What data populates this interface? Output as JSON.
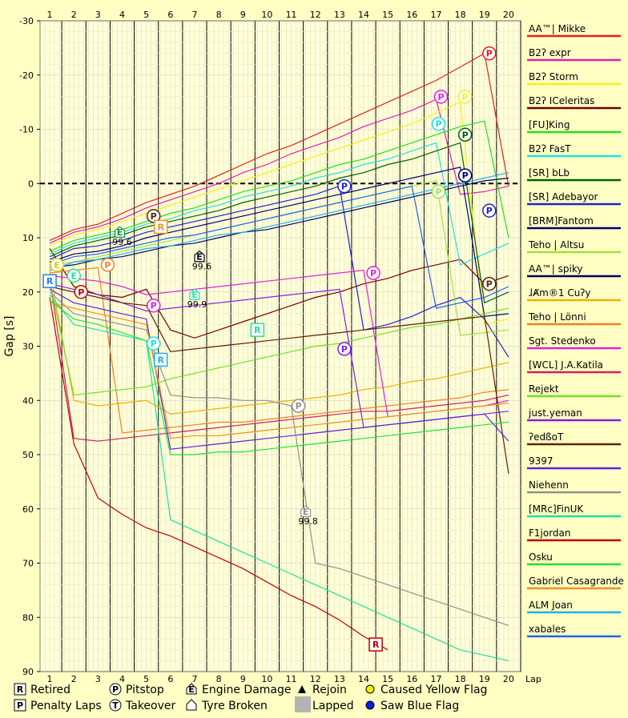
{
  "chart_data": {
    "type": "line",
    "ylabel": "Gap [s]",
    "xlabel": "Lap",
    "x": [
      1,
      2,
      3,
      4,
      5,
      6,
      7,
      8,
      9,
      10,
      11,
      12,
      13,
      14,
      15,
      16,
      17,
      18,
      19,
      20
    ],
    "xlim": [
      0.6,
      20.5
    ],
    "ylim": [
      -30,
      90
    ],
    "y_inverted": true,
    "yticks": [
      -30,
      -20,
      -10,
      0,
      10,
      20,
      30,
      40,
      50,
      60,
      70,
      80,
      90
    ],
    "grid": true,
    "legend_position": "right",
    "series": [
      {
        "name": "AA™| Mikke",
        "color": "#e02020",
        "values": [
          10.5,
          8.5,
          7.5,
          5.5,
          3.5,
          2.0,
          0.5,
          -1.5,
          -3.5,
          -5.5,
          -7.0,
          -9.0,
          -11.0,
          -13.0,
          -15.0,
          -17.0,
          -19.0,
          -21.5,
          -24.0,
          0.5
        ]
      },
      {
        "name": "B2ʔ expr",
        "color": "#e020b0",
        "values": [
          11.0,
          9.0,
          8.0,
          6.5,
          4.5,
          3.0,
          1.5,
          0.0,
          -2.0,
          -3.5,
          -5.5,
          -7.0,
          -8.5,
          -10.5,
          -12.0,
          -13.5,
          -15.5,
          2.0,
          1.5,
          0.5
        ]
      },
      {
        "name": "B2ʔ Storm",
        "color": "#f0f020",
        "values": [
          11.5,
          9.5,
          8.5,
          7.0,
          5.5,
          4.0,
          2.5,
          1.0,
          -0.5,
          -2.0,
          -3.5,
          -5.0,
          -6.5,
          -8.0,
          -9.5,
          -11.0,
          -13.0,
          -15.0,
          26.0,
          25.0
        ]
      },
      {
        "name": "B2ʔ ICeleritas",
        "color": "#700000",
        "values": [
          12.0,
          19.0,
          20.5,
          21.0,
          19.5,
          27.0,
          28.5,
          27.0,
          25.5,
          24.0,
          22.5,
          21.0,
          20.0,
          18.5,
          17.5,
          16.0,
          15.0,
          14.0,
          18.5,
          17.0
        ]
      },
      {
        "name": "[FU]King",
        "color": "#20e020",
        "values": [
          12.5,
          10.5,
          9.5,
          8.5,
          7.0,
          5.5,
          4.5,
          3.0,
          1.5,
          0.5,
          -0.5,
          -2.0,
          -3.5,
          -4.5,
          -6.0,
          -7.5,
          -9.0,
          -10.5,
          -11.5,
          10.0
        ]
      },
      {
        "name": "B2ʔ FasT",
        "color": "#20e0e0",
        "values": [
          13.0,
          11.0,
          10.0,
          9.0,
          7.5,
          6.5,
          5.0,
          4.0,
          2.5,
          1.5,
          0.5,
          -1.0,
          -2.0,
          -3.5,
          -4.5,
          -6.0,
          -7.5,
          15.0,
          13.0,
          11.0
        ]
      },
      {
        "name": "[SR] bLb",
        "color": "#006000",
        "values": [
          13.5,
          11.5,
          10.5,
          9.5,
          8.0,
          7.0,
          6.0,
          5.0,
          3.5,
          2.5,
          1.5,
          0.5,
          -1.0,
          -2.0,
          -3.5,
          -4.5,
          -6.0,
          -7.5,
          22.0,
          20.0
        ]
      },
      {
        "name": "[SR] Adebayor",
        "color": "#2020d0",
        "values": [
          14.0,
          12.0,
          11.5,
          10.5,
          9.0,
          8.0,
          7.0,
          6.0,
          5.0,
          4.0,
          3.0,
          2.0,
          0.5,
          27.0,
          26.0,
          24.5,
          22.5,
          21.0,
          25.0,
          32.0
        ]
      },
      {
        "name": "[BRM]Fantom",
        "color": "#000070",
        "values": [
          14.5,
          13.0,
          12.5,
          11.5,
          10.0,
          9.0,
          8.0,
          7.0,
          6.0,
          5.0,
          4.0,
          3.0,
          2.0,
          1.0,
          0.0,
          -1.0,
          -2.0,
          -3.0,
          24.5,
          24.0
        ]
      },
      {
        "name": "Teho | Altsu",
        "color": "#a0e040",
        "values": [
          15.0,
          14.5,
          13.5,
          12.5,
          11.5,
          10.5,
          9.5,
          8.5,
          7.5,
          6.5,
          5.5,
          4.5,
          3.5,
          2.5,
          1.5,
          0.5,
          -0.5,
          28.0,
          27.5,
          27.0
        ]
      },
      {
        "name": "AA™| spiky",
        "color": "#000060",
        "values": [
          15.5,
          15.0,
          14.0,
          13.5,
          12.5,
          11.5,
          11.0,
          10.0,
          9.0,
          8.5,
          7.5,
          6.5,
          5.5,
          4.5,
          3.5,
          2.5,
          1.5,
          0.5,
          -0.5,
          -1.0
        ]
      },
      {
        "name": "ɺ﻿Ⱥm®1 Cuʔy",
        "color": "#f0b000",
        "values": [
          16.0,
          40.0,
          41.0,
          40.5,
          40.0,
          42.5,
          42.0,
          41.5,
          41.0,
          40.5,
          40.0,
          39.5,
          39.0,
          38.0,
          37.5,
          36.5,
          36.0,
          35.0,
          34.0,
          33.0
        ]
      },
      {
        "name": "Teho | Lönni",
        "color": "#f08020",
        "values": [
          16.5,
          16.0,
          15.5,
          46.0,
          45.5,
          45.0,
          44.5,
          44.0,
          44.0,
          43.5,
          43.0,
          42.5,
          42.0,
          41.5,
          41.0,
          40.5,
          40.0,
          39.5,
          38.5,
          38.0
        ]
      },
      {
        "name": "Sgt. Stedenko",
        "color": "#e020e0",
        "values": [
          17.0,
          17.5,
          18.0,
          19.0,
          20.5,
          20.0,
          19.5,
          19.0,
          18.5,
          18.0,
          17.5,
          17.0,
          16.5,
          16.0,
          43.0,
          42.5,
          42.0,
          41.5,
          41.0,
          40.0
        ]
      },
      {
        "name": "[WCL] J.A.Katila",
        "color": "#d02060",
        "values": [
          17.5,
          47.0,
          47.5,
          47.0,
          46.5,
          46.0,
          45.5,
          45.0,
          44.5,
          44.0,
          43.5,
          43.0,
          42.5,
          42.0,
          42.0,
          41.5,
          41.0,
          40.5,
          40.0,
          39.0
        ]
      },
      {
        "name": "Rejekt",
        "color": "#70e020",
        "values": [
          18.0,
          39.0,
          38.5,
          38.0,
          37.5,
          36.0,
          35.0,
          34.0,
          33.0,
          32.0,
          31.0,
          30.0,
          29.5,
          28.5,
          27.5,
          26.5,
          26.0,
          25.0,
          24.0,
          23.0
        ]
      },
      {
        "name": "just.yeman",
        "color": "#8020e0",
        "values": [
          18.5,
          19.5,
          20.5,
          22.0,
          23.5,
          23.0,
          22.5,
          22.0,
          21.5,
          21.0,
          20.5,
          20.0,
          19.5,
          45.0,
          44.5,
          44.0,
          43.5,
          43.0,
          42.5,
          42.0
        ]
      },
      {
        "name": "ʔedßoT",
        "color": "#602000",
        "values": [
          19.0,
          20.0,
          21.0,
          22.0,
          22.5,
          31.0,
          30.5,
          30.0,
          29.5,
          29.0,
          28.5,
          28.0,
          27.5,
          27.0,
          26.5,
          26.0,
          25.5,
          25.0,
          24.5,
          53.5
        ]
      },
      {
        "name": "9397",
        "color": "#6020e0",
        "values": [
          19.5,
          22.0,
          23.0,
          24.0,
          25.0,
          49.0,
          48.5,
          48.0,
          47.5,
          47.0,
          46.5,
          46.0,
          45.5,
          45.0,
          44.5,
          44.0,
          43.5,
          43.0,
          42.5,
          47.5
        ]
      },
      {
        "name": "Niehenn",
        "color": "#909090",
        "values": [
          20.0,
          24.0,
          25.0,
          26.0,
          27.0,
          39.0,
          39.5,
          39.5,
          40.0,
          40.0,
          41.0,
          70.0,
          71.0,
          72.5,
          74.0,
          75.5,
          77.0,
          78.5,
          80.0,
          81.5
        ]
      },
      {
        "name": "[MRc]FinUK",
        "color": "#20e0a0",
        "values": [
          20.5,
          26.0,
          27.0,
          28.0,
          29.0,
          62.0,
          64.0,
          66.0,
          68.0,
          70.0,
          72.0,
          74.0,
          76.0,
          78.0,
          80.0,
          82.0,
          84.0,
          86.0,
          87.0,
          88.0
        ]
      },
      {
        "name": "F1jordan",
        "color": "#c00000",
        "values": [
          21.0,
          48.0,
          58.0,
          61.0,
          63.5,
          65.0,
          67.0,
          69.0,
          71.0,
          73.5,
          76.0,
          78.0,
          80.5,
          83.5,
          86.0,
          null,
          null,
          null,
          null,
          null
        ]
      },
      {
        "name": "Osku",
        "color": "#20e040",
        "values": [
          21.5,
          25.0,
          26.0,
          27.5,
          29.0,
          50.0,
          50.0,
          49.5,
          49.5,
          49.0,
          48.5,
          48.0,
          47.5,
          47.0,
          46.5,
          46.0,
          45.5,
          45.0,
          44.5,
          44.0
        ]
      },
      {
        "name": "Gabriel Casagrande",
        "color": "#f09020",
        "values": [
          22.0,
          23.0,
          24.0,
          25.0,
          26.0,
          47.0,
          46.5,
          46.5,
          46.0,
          45.5,
          45.0,
          44.5,
          44.0,
          43.5,
          43.0,
          42.5,
          42.0,
          41.5,
          41.0,
          40.5
        ]
      },
      {
        "name": "ALM Joan",
        "color": "#20b0f0",
        "values": [
          16.0,
          14.5,
          14.0,
          13.0,
          12.0,
          11.5,
          10.5,
          9.5,
          9.0,
          8.0,
          7.0,
          6.0,
          5.0,
          4.0,
          3.0,
          2.0,
          1.0,
          0.0,
          -1.0,
          -2.0
        ]
      },
      {
        "name": "xabales",
        "color": "#2060f0",
        "values": [
          15.0,
          13.5,
          13.0,
          12.0,
          11.0,
          10.0,
          9.5,
          8.5,
          7.5,
          6.5,
          5.5,
          4.5,
          3.5,
          2.5,
          1.5,
          0.5,
          23.0,
          22.0,
          21.0,
          19.0
        ]
      }
    ],
    "markers": [
      {
        "type": "P",
        "x": 19.2,
        "y": -24.0,
        "color": "#e02020"
      },
      {
        "type": "P",
        "x": 17.2,
        "y": -16.0,
        "color": "#e020e0"
      },
      {
        "type": "P",
        "x": 18.2,
        "y": -16.0,
        "color": "#f0f020"
      },
      {
        "type": "P",
        "x": 17.1,
        "y": -11.0,
        "color": "#20e0e0"
      },
      {
        "type": "P",
        "x": 18.2,
        "y": -9.0,
        "color": "#006000"
      },
      {
        "type": "P",
        "x": 18.2,
        "y": -1.5,
        "color": "#000070"
      },
      {
        "type": "P",
        "x": 17.1,
        "y": 1.5,
        "color": "#a0e040"
      },
      {
        "type": "P",
        "x": 13.2,
        "y": 0.5,
        "color": "#2020d0"
      },
      {
        "type": "P",
        "x": 19.2,
        "y": 5.0,
        "color": "#2020d0"
      },
      {
        "type": "P",
        "x": 5.3,
        "y": 6.0,
        "color": "#602000"
      },
      {
        "type": "R",
        "x": 5.6,
        "y": 8.0,
        "color": "#f09020"
      },
      {
        "type": "P",
        "x": 14.4,
        "y": 16.5,
        "color": "#e020e0"
      },
      {
        "type": "P",
        "x": 19.2,
        "y": 18.5,
        "color": "#602000"
      },
      {
        "type": "P",
        "x": 3.4,
        "y": 15.0,
        "color": "#f08020"
      },
      {
        "type": "R",
        "x": 1.0,
        "y": 18.0,
        "color": "#2080f0"
      },
      {
        "type": "E",
        "x": 1.3,
        "y": 15.0,
        "color": "#d0d020"
      },
      {
        "type": "E",
        "x": 2.0,
        "y": 17.0,
        "color": "#20e0a0"
      },
      {
        "type": "P",
        "x": 2.3,
        "y": 20.0,
        "color": "#c00000"
      },
      {
        "type": "P",
        "x": 5.3,
        "y": 22.5,
        "color": "#e020e0"
      },
      {
        "type": "R",
        "x": 9.6,
        "y": 27.0,
        "color": "#20e0a0"
      },
      {
        "type": "P",
        "x": 5.3,
        "y": 29.5,
        "color": "#20e0e0"
      },
      {
        "type": "R",
        "x": 5.6,
        "y": 32.5,
        "color": "#20b0f0"
      },
      {
        "type": "P",
        "x": 13.2,
        "y": 30.5,
        "color": "#8020e0"
      },
      {
        "type": "P",
        "x": 11.3,
        "y": 41.0,
        "color": "#909090"
      },
      {
        "type": "R",
        "x": 14.5,
        "y": 85.0,
        "color": "#c00000"
      }
    ],
    "engine_damage": [
      {
        "x": 3.9,
        "y": 9.0,
        "label": "99.6",
        "color": "#009040"
      },
      {
        "x": 7.2,
        "y": 13.5,
        "label": "99.6",
        "color": "#000000"
      },
      {
        "x": 7.0,
        "y": 20.5,
        "label": "99.9",
        "color": "#20e0a0"
      },
      {
        "x": 11.6,
        "y": 60.5,
        "label": "99.8",
        "color": "#909090"
      }
    ],
    "legend_items": [
      {
        "name": "Retired",
        "symbol": "R"
      },
      {
        "name": "Penalty Laps",
        "symbol": "P-square"
      },
      {
        "name": "Pitstop",
        "symbol": "P"
      },
      {
        "name": "Takeover",
        "symbol": "T"
      },
      {
        "name": "Engine Damage",
        "symbol": "E"
      },
      {
        "name": "Tyre Broken",
        "symbol": "tyre"
      },
      {
        "name": "Rejoin",
        "symbol": "triangle"
      },
      {
        "name": "Lapped",
        "symbol": "gray-square"
      },
      {
        "name": "Caused Yellow Flag",
        "symbol": "yellow-dot"
      },
      {
        "name": "Saw Blue Flag",
        "symbol": "blue-dot"
      }
    ]
  }
}
